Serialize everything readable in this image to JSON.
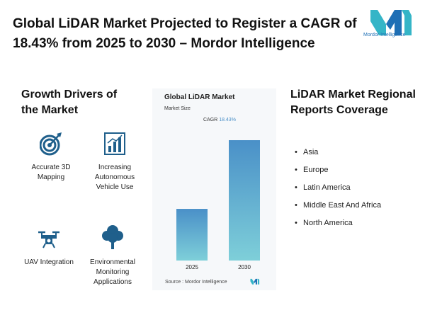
{
  "header": {
    "title": "Global LiDAR Market Projected to Register a CAGR of 18.43% from 2025 to 2030 – Mordor Intelligence",
    "logo_text": "Mordor Intelligence"
  },
  "drivers": {
    "title": "Growth Drivers of the Market",
    "items": [
      {
        "label": "Accurate 3D Mapping",
        "icon": "target-icon"
      },
      {
        "label": "Increasing Autonomous Vehicle Use",
        "icon": "bar-chart-icon"
      },
      {
        "label": "UAV Integration",
        "icon": "drone-icon"
      },
      {
        "label": "Environmental Monitoring Applications",
        "icon": "tree-icon"
      }
    ]
  },
  "chart_data": {
    "type": "bar",
    "title": "Global LiDAR Market",
    "subtitle": "Market Size",
    "cagr_label": "CAGR",
    "cagr_value": "18.43%",
    "categories": [
      "2025",
      "2030"
    ],
    "values": [
      1,
      2.33
    ],
    "source": "Source : Mordor Intelligence",
    "colors": {
      "bar_top": "#4a90c8",
      "bar_bottom": "#7ecfd9"
    }
  },
  "regions": {
    "title": "LiDAR Market Regional Reports Coverage",
    "items": [
      "Asia",
      "Europe",
      "Latin America",
      "Middle East And Africa",
      "North America"
    ]
  },
  "colors": {
    "icon": "#1f5f8b",
    "accent": "#4a8fc7"
  }
}
